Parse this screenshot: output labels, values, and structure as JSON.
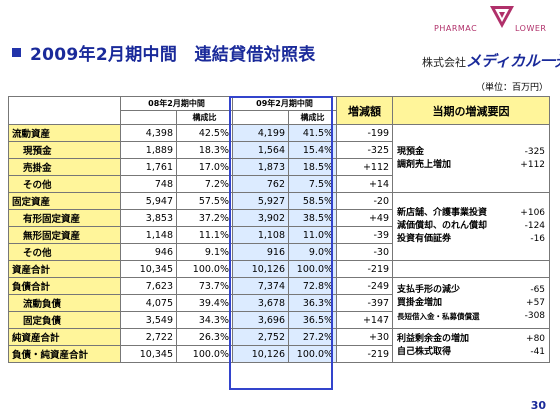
{
  "title": "2009年2月期中間　連結貸借対照表",
  "logo": {
    "pharmacy_text": "PHARMAC",
    "flower_text": "LOWER",
    "company_prefix": "株式会社",
    "company_name": "メディカル一光"
  },
  "unit_label": "（単位：百万円）",
  "table": {
    "period1_header": "08年2月期中間",
    "period2_header": "09年2月期中間",
    "ratio_header": "構成比",
    "change_header": "増減額",
    "reason_header": "当期の増減要因",
    "rows": [
      {
        "label": "流動資産",
        "v1": "4,398",
        "r1": "42.5%",
        "v2": "4,199",
        "r2": "41.5%",
        "chg": "-199"
      },
      {
        "label": "現預金",
        "v1": "1,889",
        "r1": "18.3%",
        "v2": "1,564",
        "r2": "15.4%",
        "chg": "-325"
      },
      {
        "label": "売掛金",
        "v1": "1,761",
        "r1": "17.0%",
        "v2": "1,873",
        "r2": "18.5%",
        "chg": "+112"
      },
      {
        "label": "その他",
        "v1": "748",
        "r1": "7.2%",
        "v2": "762",
        "r2": "7.5%",
        "chg": "+14"
      },
      {
        "label": "固定資産",
        "v1": "5,947",
        "r1": "57.5%",
        "v2": "5,927",
        "r2": "58.5%",
        "chg": "-20"
      },
      {
        "label": "有形固定資産",
        "v1": "3,853",
        "r1": "37.2%",
        "v2": "3,902",
        "r2": "38.5%",
        "chg": "+49"
      },
      {
        "label": "無形固定資産",
        "v1": "1,148",
        "r1": "11.1%",
        "v2": "1,108",
        "r2": "11.0%",
        "chg": "-39"
      },
      {
        "label": "その他",
        "v1": "946",
        "r1": "9.1%",
        "v2": "916",
        "r2": "9.0%",
        "chg": "-30"
      },
      {
        "label": "資産合計",
        "v1": "10,345",
        "r1": "100.0%",
        "v2": "10,126",
        "r2": "100.0%",
        "chg": "-219"
      },
      {
        "label": "負債合計",
        "v1": "7,623",
        "r1": "73.7%",
        "v2": "7,374",
        "r2": "72.8%",
        "chg": "-249"
      },
      {
        "label": "流動負債",
        "v1": "4,075",
        "r1": "39.4%",
        "v2": "3,678",
        "r2": "36.3%",
        "chg": "-397"
      },
      {
        "label": "固定負債",
        "v1": "3,549",
        "r1": "34.3%",
        "v2": "3,696",
        "r2": "36.5%",
        "chg": "+147"
      },
      {
        "label": "純資産合計",
        "v1": "2,722",
        "r1": "26.3%",
        "v2": "2,752",
        "r2": "27.2%",
        "chg": "+30"
      },
      {
        "label": "負債・純資産合計",
        "v1": "10,345",
        "r1": "100.0%",
        "v2": "10,126",
        "r2": "100.0%",
        "chg": "-219"
      }
    ],
    "reasons": {
      "group1": [
        {
          "item": "現預金",
          "value": "-325"
        },
        {
          "item": "調剤売上増加",
          "value": "+112"
        }
      ],
      "group2": [
        {
          "item": "新店舗、介護事業投資",
          "value": "+106"
        },
        {
          "item": "減価償却、のれん償却",
          "value": "-124"
        },
        {
          "item": "投資有価証券",
          "value": "-16"
        }
      ],
      "group3": [
        {
          "item": "支払手形の減少",
          "value": "-65"
        },
        {
          "item": "買掛金増加",
          "value": "+57"
        },
        {
          "item": "長短借入金・私募債償還",
          "value": "-308"
        }
      ],
      "group4": [
        {
          "item": "利益剰余金の増加",
          "value": "+80"
        },
        {
          "item": "自己株式取得",
          "value": "-41"
        }
      ]
    }
  },
  "page_number": "30"
}
